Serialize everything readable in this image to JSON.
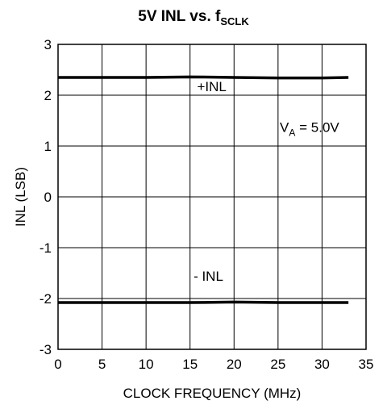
{
  "chart_data": {
    "type": "line",
    "title": "5V INL vs. f",
    "title_subscript": "SCLK",
    "xlabel": "CLOCK FREQUENCY (MHz)",
    "ylabel": "INL (LSB)",
    "xlim": [
      0,
      35
    ],
    "ylim": [
      -3,
      3
    ],
    "xticks": [
      0,
      5,
      10,
      15,
      20,
      25,
      30,
      35
    ],
    "yticks": [
      -3,
      -2,
      -1,
      0,
      1,
      2,
      3
    ],
    "grid": true,
    "series": [
      {
        "name": "+INL",
        "x": [
          0,
          5,
          10,
          15,
          20,
          25,
          30,
          33
        ],
        "y": [
          2.35,
          2.35,
          2.35,
          2.36,
          2.35,
          2.34,
          2.34,
          2.35
        ]
      },
      {
        "name": "- INL",
        "x": [
          0,
          5,
          10,
          15,
          20,
          25,
          30,
          33
        ],
        "y": [
          -2.08,
          -2.08,
          -2.08,
          -2.08,
          -2.07,
          -2.08,
          -2.08,
          -2.08
        ]
      }
    ],
    "annotations": [
      {
        "text_main": "V",
        "text_sub": "A",
        "text_rest": " = 5.0V"
      }
    ],
    "colors": {
      "line": "#000000",
      "grid": "#000000"
    }
  }
}
